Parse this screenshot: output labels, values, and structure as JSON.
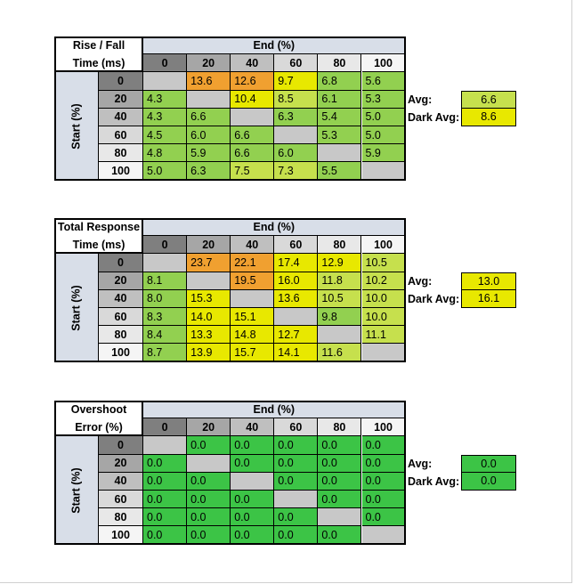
{
  "colors": {
    "header_blue": "#d8dee8",
    "row_head_grey": "#c0c0c0",
    "diag_grey": "#c8c8c8",
    "green_light": "#92d050",
    "green_yellow": "#c6e04d",
    "yellow": "#e8e800",
    "orange": "#f0a030",
    "green_ok": "#3cc446",
    "col_head_shades": [
      "#7f7f7f",
      "#a6a6a6",
      "#bfbfbf",
      "#d9d9d9",
      "#e8e8e8",
      "#f5f5f5"
    ]
  },
  "chart_data": [
    {
      "type": "table",
      "title": "Rise / Fall Time (ms)",
      "title_lines": [
        "Rise / Fall",
        "Time (ms)"
      ],
      "col_header": "End (%)",
      "row_header": "Start (%)",
      "columns": [
        "0",
        "20",
        "40",
        "60",
        "80",
        "100"
      ],
      "rows": [
        "0",
        "20",
        "40",
        "60",
        "80",
        "100"
      ],
      "values": [
        [
          "",
          "13.6",
          "12.6",
          "9.7",
          "6.8",
          "5.6"
        ],
        [
          "4.3",
          "",
          "10.4",
          "8.5",
          "6.1",
          "5.3"
        ],
        [
          "4.3",
          "6.6",
          "",
          "6.3",
          "5.4",
          "5.0"
        ],
        [
          "4.5",
          "6.0",
          "6.6",
          "",
          "5.3",
          "5.0"
        ],
        [
          "4.8",
          "5.9",
          "6.6",
          "6.0",
          "",
          "5.9"
        ],
        [
          "5.0",
          "6.3",
          "7.5",
          "7.3",
          "5.5",
          ""
        ]
      ],
      "avg_label": "Avg:",
      "avg": "6.6",
      "dark_avg_label": "Dark Avg:",
      "dark_avg": "8.6"
    },
    {
      "type": "table",
      "title": "Total Response Time (ms)",
      "title_lines": [
        "Total Response",
        "Time (ms)"
      ],
      "col_header": "End (%)",
      "row_header": "Start (%)",
      "columns": [
        "0",
        "20",
        "40",
        "60",
        "80",
        "100"
      ],
      "rows": [
        "0",
        "20",
        "40",
        "60",
        "80",
        "100"
      ],
      "values": [
        [
          "",
          "23.7",
          "22.1",
          "17.4",
          "12.9",
          "10.5"
        ],
        [
          "8.1",
          "",
          "19.5",
          "16.0",
          "11.8",
          "10.2"
        ],
        [
          "8.0",
          "15.3",
          "",
          "13.6",
          "10.5",
          "10.0"
        ],
        [
          "8.3",
          "14.0",
          "15.1",
          "",
          "9.8",
          "10.0"
        ],
        [
          "8.4",
          "13.3",
          "14.8",
          "12.7",
          "",
          "11.1"
        ],
        [
          "8.7",
          "13.9",
          "15.7",
          "14.1",
          "11.6",
          ""
        ]
      ],
      "avg_label": "Avg:",
      "avg": "13.0",
      "dark_avg_label": "Dark Avg:",
      "dark_avg": "16.1"
    },
    {
      "type": "table",
      "title": "Overshoot Error (%)",
      "title_lines": [
        "Overshoot",
        "Error (%)"
      ],
      "col_header": "End (%)",
      "row_header": "Start (%)",
      "columns": [
        "0",
        "20",
        "40",
        "60",
        "80",
        "100"
      ],
      "rows": [
        "0",
        "20",
        "40",
        "60",
        "80",
        "100"
      ],
      "values": [
        [
          "",
          "0.0",
          "0.0",
          "0.0",
          "0.0",
          "0.0"
        ],
        [
          "0.0",
          "",
          "0.0",
          "0.0",
          "0.0",
          "0.0"
        ],
        [
          "0.0",
          "0.0",
          "",
          "0.0",
          "0.0",
          "0.0"
        ],
        [
          "0.0",
          "0.0",
          "0.0",
          "",
          "0.0",
          "0.0"
        ],
        [
          "0.0",
          "0.0",
          "0.0",
          "0.0",
          "",
          "0.0"
        ],
        [
          "0.0",
          "0.0",
          "0.0",
          "0.0",
          "0.0",
          ""
        ]
      ],
      "avg_label": "Avg:",
      "avg": "0.0",
      "dark_avg_label": "Dark Avg:",
      "dark_avg": "0.0"
    }
  ]
}
